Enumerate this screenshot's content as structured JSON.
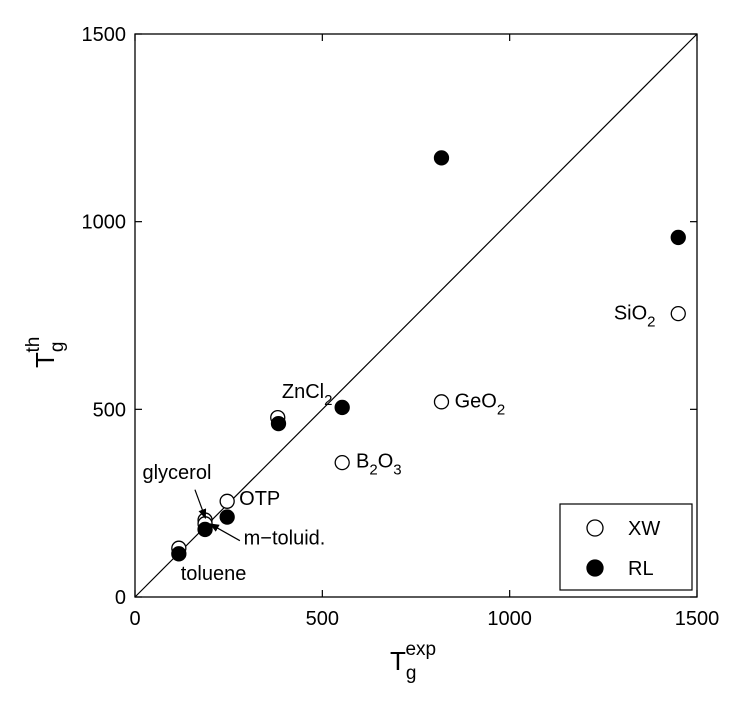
{
  "chart_data": {
    "type": "scatter",
    "xlim": [
      0,
      1500
    ],
    "ylim": [
      0,
      1500
    ],
    "x_ticks": [
      0,
      500,
      1000,
      1500
    ],
    "y_ticks": [
      0,
      500,
      1000,
      1500
    ],
    "grid": false,
    "legend_position": "bottom-right",
    "xlabel": {
      "base": "T",
      "sub": "g",
      "sup": "exp"
    },
    "ylabel": {
      "base": "T",
      "sub": "g",
      "sup": "th"
    },
    "reference_line": {
      "from": [
        0,
        0
      ],
      "to": [
        1500,
        1500
      ]
    },
    "series": [
      {
        "name": "XW",
        "marker": "open-circle",
        "points": [
          {
            "x": 117,
            "y": 130
          },
          {
            "x": 187,
            "y": 205
          },
          {
            "x": 187,
            "y": 195
          },
          {
            "x": 246,
            "y": 255
          },
          {
            "x": 381,
            "y": 478
          },
          {
            "x": 553,
            "y": 358
          },
          {
            "x": 818,
            "y": 520
          },
          {
            "x": 1450,
            "y": 755
          }
        ]
      },
      {
        "name": "RL",
        "marker": "filled-circle",
        "points": [
          {
            "x": 117,
            "y": 115
          },
          {
            "x": 187,
            "y": 180
          },
          {
            "x": 246,
            "y": 213
          },
          {
            "x": 383,
            "y": 462
          },
          {
            "x": 553,
            "y": 505
          },
          {
            "x": 818,
            "y": 1170
          },
          {
            "x": 1450,
            "y": 958
          }
        ]
      }
    ],
    "annotations": [
      {
        "key": "zncl2",
        "base": "ZnCl",
        "sub": "2",
        "x": 392,
        "y": 530
      },
      {
        "key": "geo2",
        "base": "GeO",
        "sub": "2",
        "x": 853,
        "y": 505
      },
      {
        "key": "b2o3",
        "base": "B",
        "sub": "2",
        "tail": "O",
        "sub2": "3",
        "x": 590,
        "y": 345
      },
      {
        "key": "sio2",
        "base": "SiO",
        "sub": "2",
        "x": 1278,
        "y": 740
      },
      {
        "key": "otp",
        "base": "OTP",
        "x": 278,
        "y": 245
      },
      {
        "key": "glycerol",
        "base": "glycerol",
        "x": 20,
        "y": 315
      },
      {
        "key": "m-toluid",
        "base": "m−toluid.",
        "x": 290,
        "y": 140
      },
      {
        "key": "toluene",
        "base": "toluene",
        "x": 122,
        "y": 45
      }
    ],
    "arrows": [
      {
        "key": "glycerol",
        "from": [
          160,
          286
        ],
        "to": [
          188,
          210
        ]
      },
      {
        "key": "m-toluid",
        "from": [
          280,
          150
        ],
        "to": [
          200,
          195
        ]
      }
    ]
  }
}
